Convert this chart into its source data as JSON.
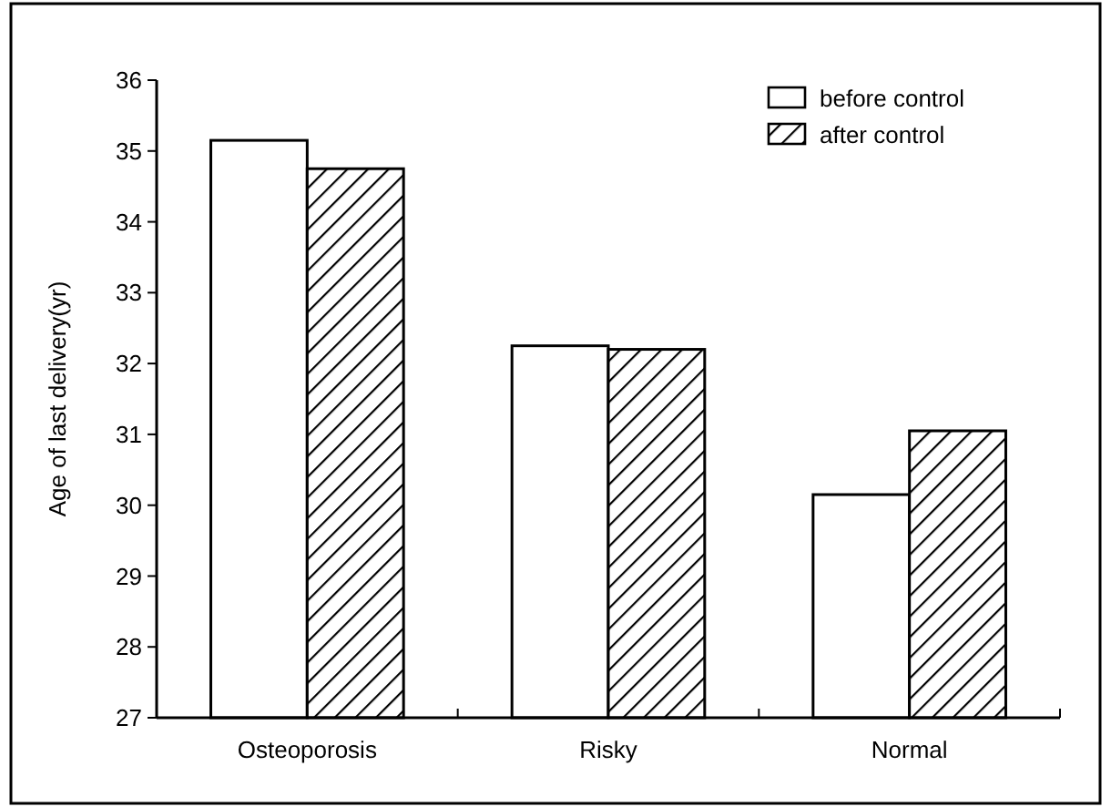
{
  "chart_data": {
    "type": "bar",
    "ylabel": "Age of last delivery(yr)",
    "categories": [
      "Osteoporosis",
      "Risky",
      "Normal"
    ],
    "series": [
      {
        "name": "before control",
        "color": "#ffffff",
        "values": [
          35.15,
          32.25,
          30.15
        ]
      },
      {
        "name": "after control",
        "color": "#000000",
        "values": [
          34.75,
          32.2,
          31.05
        ]
      }
    ],
    "ylim": [
      27,
      36
    ],
    "yticks": [
      27,
      28,
      29,
      30,
      31,
      32,
      33,
      34,
      35,
      36
    ],
    "legend": "top right",
    "grid": false
  }
}
